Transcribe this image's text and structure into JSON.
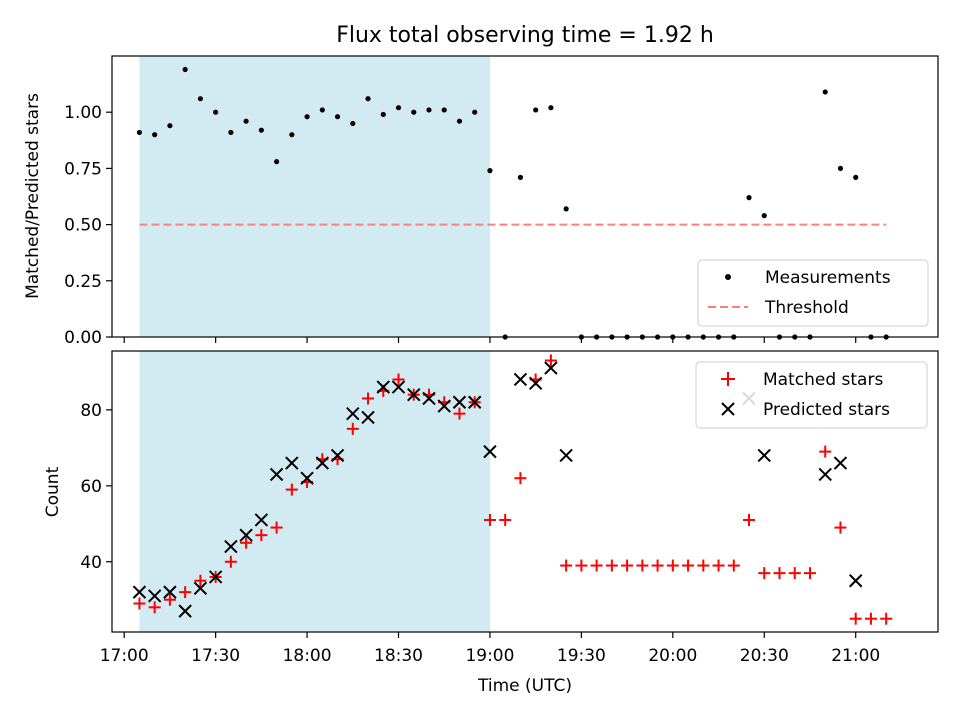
{
  "chart_data": [
    {
      "type": "scatter",
      "title": "Flux total observing time = 1.92 h",
      "xlabel": "",
      "ylabel": "Matched/Predicted stars",
      "xlim": [
        "16:56",
        "21:27"
      ],
      "ylim": [
        0,
        1.25
      ],
      "yticks": [
        "0.00",
        "0.25",
        "0.50",
        "0.75",
        "1.00"
      ],
      "grid": false,
      "legend_position": "lower-right",
      "highlight_span": [
        "17:05",
        "19:00"
      ],
      "colors": {
        "measurements": "#000000",
        "threshold": "#ff7f7f",
        "span": "#add8e6"
      },
      "threshold": {
        "name": "Threshold",
        "value": 0.5,
        "x_range": [
          "17:05",
          "21:10"
        ]
      },
      "series": [
        {
          "name": "Measurements",
          "x": [
            "17:05",
            "17:10",
            "17:15",
            "17:20",
            "17:25",
            "17:30",
            "17:35",
            "17:40",
            "17:45",
            "17:50",
            "17:55",
            "18:00",
            "18:05",
            "18:10",
            "18:15",
            "18:20",
            "18:25",
            "18:30",
            "18:35",
            "18:40",
            "18:45",
            "18:50",
            "18:55",
            "19:00",
            "19:05",
            "19:10",
            "19:15",
            "19:20",
            "19:25",
            "19:30",
            "19:35",
            "19:40",
            "19:45",
            "19:50",
            "19:55",
            "20:00",
            "20:05",
            "20:10",
            "20:15",
            "20:20",
            "20:25",
            "20:30",
            "20:35",
            "20:40",
            "20:45",
            "20:50",
            "20:55",
            "21:00",
            "21:05",
            "21:10"
          ],
          "y": [
            0.91,
            0.9,
            0.94,
            1.19,
            1.06,
            1.0,
            0.91,
            0.96,
            0.92,
            0.78,
            0.9,
            0.98,
            1.01,
            0.98,
            0.95,
            1.06,
            0.99,
            1.02,
            1.0,
            1.01,
            1.01,
            0.96,
            1.0,
            0.74,
            0.0,
            0.71,
            1.01,
            1.02,
            0.57,
            0.0,
            0.0,
            0.0,
            0.0,
            0.0,
            0.0,
            0.0,
            0.0,
            0.0,
            0.0,
            0.0,
            0.62,
            0.54,
            0.0,
            0.0,
            0.0,
            1.09,
            0.75,
            0.71,
            0.0,
            0.0
          ]
        }
      ]
    },
    {
      "type": "scatter",
      "title": "",
      "xlabel": "Time (UTC)",
      "ylabel": "Count",
      "xlim": [
        "16:56",
        "21:27"
      ],
      "ylim": [
        21.5,
        95.5
      ],
      "xticks": [
        "17:00",
        "17:30",
        "18:00",
        "18:30",
        "19:00",
        "19:30",
        "20:00",
        "20:30",
        "21:00"
      ],
      "yticks": [
        "40",
        "60",
        "80"
      ],
      "grid": false,
      "legend_position": "upper-right",
      "highlight_span": [
        "17:05",
        "19:00"
      ],
      "colors": {
        "matched": "#ff0000",
        "predicted": "#000000",
        "span": "#add8e6"
      },
      "series": [
        {
          "name": "Matched stars",
          "marker": "plus",
          "x": [
            "17:05",
            "17:10",
            "17:15",
            "17:20",
            "17:25",
            "17:30",
            "17:35",
            "17:40",
            "17:45",
            "17:50",
            "17:55",
            "18:00",
            "18:05",
            "18:10",
            "18:15",
            "18:20",
            "18:25",
            "18:30",
            "18:35",
            "18:40",
            "18:45",
            "18:50",
            "18:55",
            "19:00",
            "19:05",
            "19:10",
            "19:15",
            "19:20",
            "19:25",
            "19:30",
            "19:35",
            "19:40",
            "19:45",
            "19:50",
            "19:55",
            "20:00",
            "20:05",
            "20:10",
            "20:15",
            "20:20",
            "20:25",
            "20:30",
            "20:35",
            "20:40",
            "20:45",
            "20:50",
            "20:55",
            "21:00",
            "21:05",
            "21:10"
          ],
          "y": [
            29,
            28,
            30,
            32,
            35,
            36,
            40,
            45,
            47,
            49,
            59,
            61,
            67,
            67,
            75,
            83,
            85,
            88,
            84,
            84,
            82,
            79,
            82,
            51,
            51,
            62,
            88,
            93,
            39,
            39,
            39,
            39,
            39,
            39,
            39,
            39,
            39,
            39,
            39,
            39,
            51,
            37,
            37,
            37,
            37,
            69,
            49,
            25,
            25,
            25
          ]
        },
        {
          "name": "Predicted stars",
          "marker": "x",
          "x": [
            "17:05",
            "17:10",
            "17:15",
            "17:20",
            "17:25",
            "17:30",
            "17:35",
            "17:40",
            "17:45",
            "17:50",
            "17:55",
            "18:00",
            "18:05",
            "18:10",
            "18:15",
            "18:20",
            "18:25",
            "18:30",
            "18:35",
            "18:40",
            "18:45",
            "18:50",
            "18:55",
            "19:00",
            "19:10",
            "19:15",
            "19:20",
            "19:25",
            "20:25",
            "20:30",
            "20:50",
            "20:55",
            "21:00"
          ],
          "y": [
            32,
            31,
            32,
            27,
            33,
            36,
            44,
            47,
            51,
            63,
            66,
            62,
            66,
            68,
            79,
            78,
            86,
            86,
            84,
            83,
            81,
            82,
            82,
            69,
            88,
            87,
            91,
            68,
            83,
            68,
            63,
            66,
            35
          ]
        }
      ]
    }
  ]
}
